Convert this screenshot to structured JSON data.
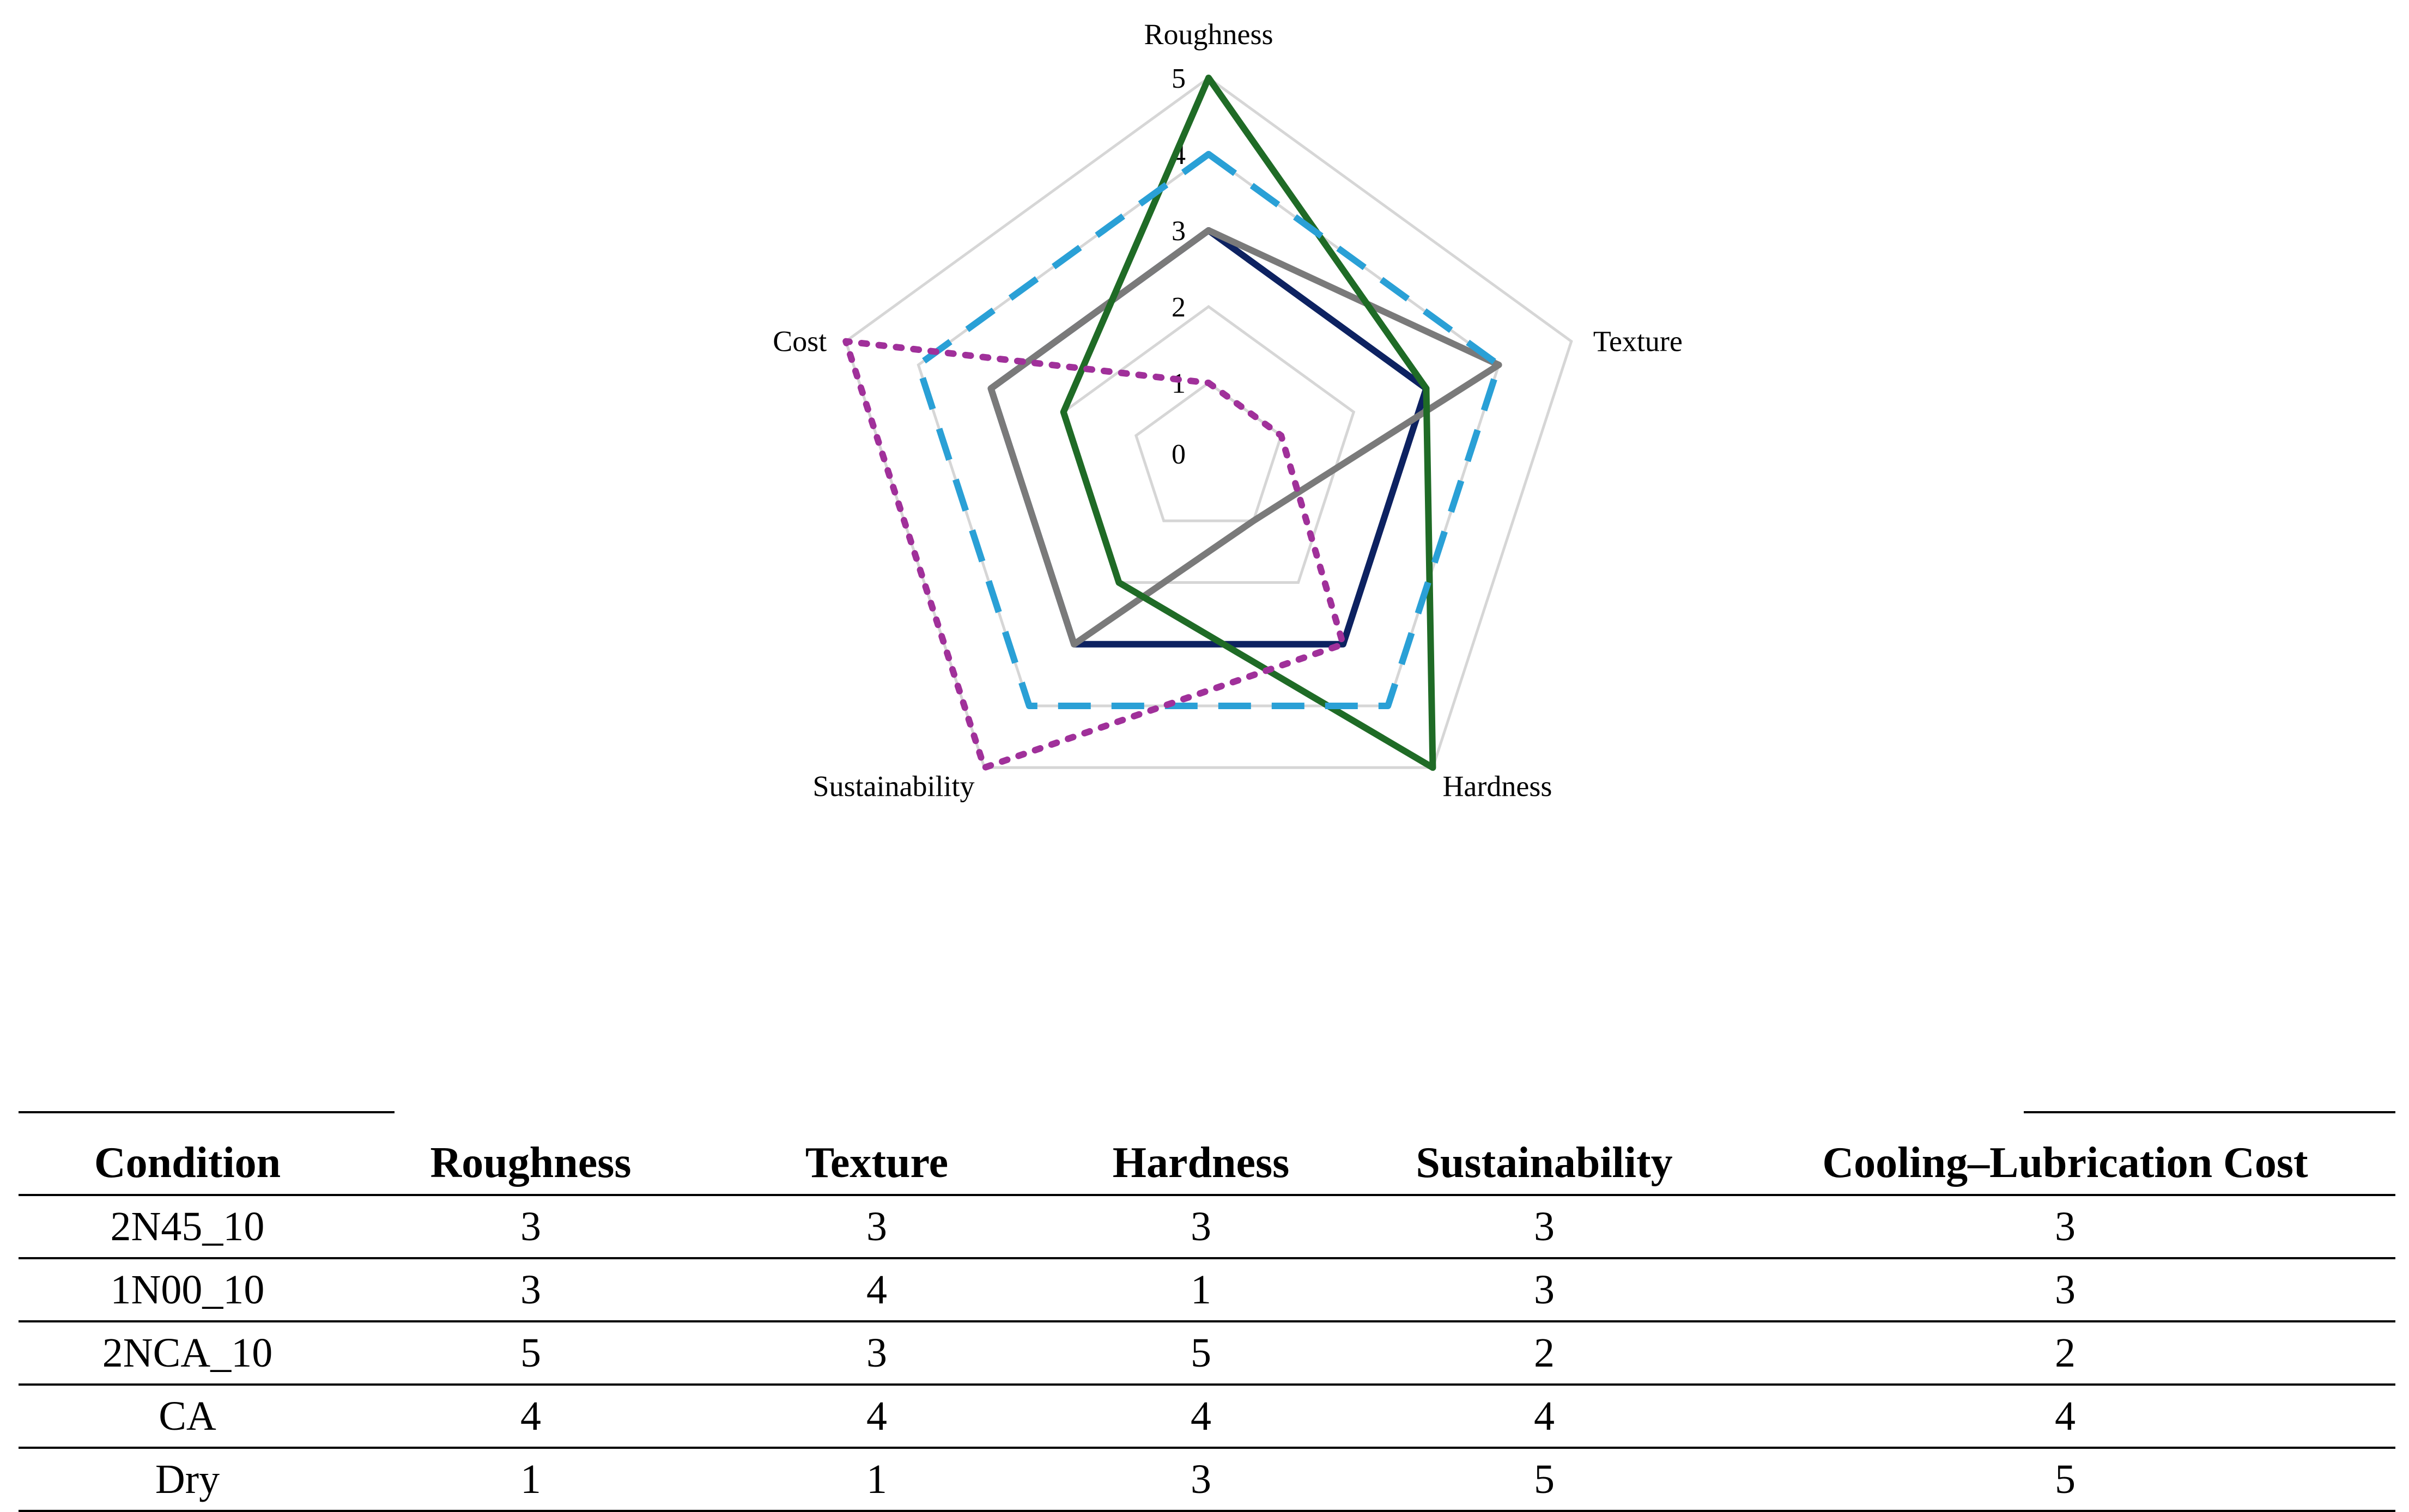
{
  "chart_data": {
    "type": "radar",
    "axes": [
      "Roughness",
      "Texture",
      "Hardness",
      "Sustainability",
      "Cost"
    ],
    "rlim": [
      0,
      5
    ],
    "ticks": [
      "0",
      "1",
      "2",
      "3",
      "4",
      "5"
    ],
    "grid": true,
    "legend_position": "bottom",
    "series": [
      {
        "name": "2N45_10",
        "values": [
          3,
          3,
          3,
          3,
          3
        ],
        "color": "#0d2261",
        "style": "solid"
      },
      {
        "name": "1N00_10",
        "values": [
          3,
          4,
          1,
          3,
          3
        ],
        "color": "#7a7a7a",
        "style": "solid"
      },
      {
        "name": "2NCA_10",
        "values": [
          5,
          3,
          5,
          2,
          2
        ],
        "color": "#1f6b26",
        "style": "solid"
      },
      {
        "name": "CA",
        "values": [
          4,
          4,
          4,
          4,
          4
        ],
        "color": "#2aa0d6",
        "style": "dashed"
      },
      {
        "name": "Dry",
        "values": [
          1,
          1,
          3,
          5,
          5
        ],
        "color": "#a0309a",
        "style": "dotted"
      }
    ]
  },
  "table": {
    "headers": [
      "Condition",
      "Roughness",
      "Texture",
      "Hardness",
      "Sustainability",
      "Cooling–Lubrication Cost"
    ],
    "rows": [
      [
        "2N45_10",
        "3",
        "3",
        "3",
        "3",
        "3"
      ],
      [
        "1N00_10",
        "3",
        "4",
        "1",
        "3",
        "3"
      ],
      [
        "2NCA_10",
        "5",
        "3",
        "5",
        "2",
        "2"
      ],
      [
        "CA",
        "4",
        "4",
        "4",
        "4",
        "4"
      ],
      [
        "Dry",
        "1",
        "1",
        "3",
        "5",
        "5"
      ]
    ]
  }
}
